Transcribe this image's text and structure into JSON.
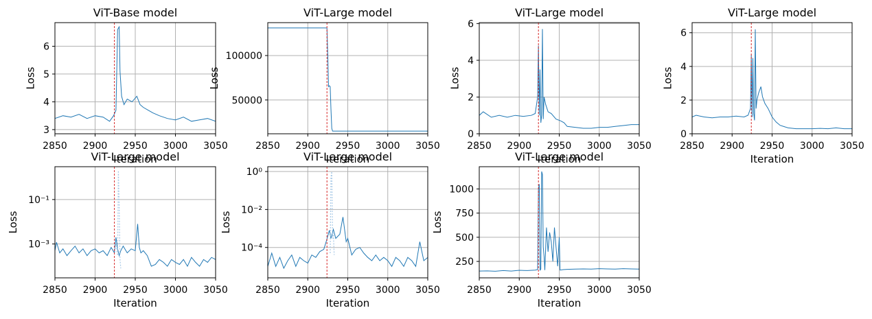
{
  "chart_data": [
    {
      "type": "line",
      "title": "ViT-Base model",
      "xlabel": "Iteration",
      "ylabel": "Loss",
      "xlim": [
        2850,
        3050
      ],
      "ylim": [
        2.85,
        6.85
      ],
      "yscale": "linear",
      "xticks": [
        2850,
        2900,
        2950,
        3000,
        3050
      ],
      "xtick_labels": [
        "2850",
        "2900",
        "2950",
        "3000",
        "3050"
      ],
      "yticks": [
        3,
        4,
        5,
        6
      ],
      "ytick_labels": [
        "3",
        "4",
        "5",
        "6"
      ],
      "grid": true,
      "line_color": "#1f77b4",
      "marker_color": "#d62728",
      "marker_x": 2924,
      "series": [
        {
          "x": [
            2850,
            2860,
            2870,
            2880,
            2890,
            2900,
            2910,
            2918,
            2923,
            2926,
            2928,
            2929,
            2930,
            2931,
            2933,
            2936,
            2940,
            2946,
            2952,
            2956,
            2960,
            2966,
            2972,
            2980,
            2990,
            3000,
            3010,
            3020,
            3030,
            3040,
            3050
          ],
          "y": [
            3.4,
            3.5,
            3.45,
            3.55,
            3.4,
            3.5,
            3.45,
            3.3,
            3.5,
            3.7,
            6.6,
            6.65,
            6.7,
            5.1,
            4.2,
            3.9,
            4.1,
            4.0,
            4.2,
            3.9,
            3.8,
            3.7,
            3.6,
            3.5,
            3.4,
            3.35,
            3.45,
            3.3,
            3.35,
            3.4,
            3.3
          ]
        }
      ]
    },
    {
      "type": "line",
      "title": "ViT-Large model",
      "xlabel": "Iteration",
      "ylabel": "Loss",
      "xlim": [
        2850,
        3050
      ],
      "ylim": [
        12000,
        137000
      ],
      "yscale": "linear",
      "xticks": [
        2850,
        2900,
        2950,
        3000,
        3050
      ],
      "xtick_labels": [
        "2850",
        "2900",
        "2950",
        "3000",
        "3050"
      ],
      "yticks": [
        50000,
        100000
      ],
      "ytick_labels": [
        "50000",
        "100000"
      ],
      "grid": true,
      "line_color": "#1f77b4",
      "marker_color": "#d62728",
      "marker_x": 2924,
      "series": [
        {
          "x": [
            2850,
            2900,
            2924,
            2925,
            2926,
            2927,
            2928,
            2929,
            2930,
            2931,
            2940,
            3000,
            3050
          ],
          "y": [
            131000,
            131000,
            131000,
            100000,
            65000,
            66000,
            65000,
            40000,
            18000,
            15000,
            15000,
            15000,
            15000
          ]
        }
      ]
    },
    {
      "type": "line",
      "title": "ViT-Large model",
      "xlabel": "Iteration",
      "ylabel": "Loss",
      "xlim": [
        2850,
        3050
      ],
      "ylim": [
        0,
        6.05
      ],
      "yscale": "linear",
      "xticks": [
        2850,
        2900,
        2950,
        3000,
        3050
      ],
      "xtick_labels": [
        "2850",
        "2900",
        "2950",
        "3000",
        "3050"
      ],
      "yticks": [
        0,
        2,
        4,
        6
      ],
      "ytick_labels": [
        "0",
        "2",
        "4",
        "6"
      ],
      "grid": true,
      "line_color": "#1f77b4",
      "marker_color": "#d62728",
      "marker_x": 2924,
      "series": [
        {
          "x": [
            2850,
            2855,
            2865,
            2875,
            2885,
            2895,
            2905,
            2915,
            2920,
            2923,
            2924,
            2925,
            2926,
            2927,
            2928,
            2929,
            2930,
            2931,
            2933,
            2936,
            2940,
            2946,
            2952,
            2956,
            2960,
            2970,
            2980,
            2990,
            3000,
            3010,
            3020,
            3030,
            3040,
            3050
          ],
          "y": [
            1.0,
            1.2,
            0.9,
            1.0,
            0.9,
            1.0,
            0.95,
            1.0,
            1.1,
            2.0,
            4.8,
            1.0,
            3.5,
            0.6,
            1.0,
            5.7,
            0.8,
            2.0,
            1.6,
            1.2,
            1.1,
            0.8,
            0.7,
            0.6,
            0.4,
            0.35,
            0.3,
            0.3,
            0.35,
            0.35,
            0.4,
            0.45,
            0.5,
            0.5
          ]
        }
      ]
    },
    {
      "type": "line",
      "title": "ViT-Large model",
      "xlabel": "Iteration",
      "ylabel": "Loss",
      "xlim": [
        2850,
        3050
      ],
      "ylim": [
        0,
        6.6
      ],
      "yscale": "linear",
      "xticks": [
        2850,
        2900,
        2950,
        3000,
        3050
      ],
      "xtick_labels": [
        "2850",
        "2900",
        "2950",
        "3000",
        "3050"
      ],
      "yticks": [
        0,
        2,
        4,
        6
      ],
      "ytick_labels": [
        "0",
        "2",
        "4",
        "6"
      ],
      "grid": true,
      "line_color": "#1f77b4",
      "marker_color": "#d62728",
      "marker_x": 2924,
      "series": [
        {
          "x": [
            2850,
            2855,
            2865,
            2875,
            2885,
            2895,
            2905,
            2915,
            2920,
            2923,
            2924,
            2925,
            2926,
            2927,
            2928,
            2929,
            2930,
            2931,
            2933,
            2936,
            2938,
            2941,
            2945,
            2950,
            2955,
            2960,
            2970,
            2980,
            2990,
            3000,
            3010,
            3020,
            3030,
            3040,
            3050
          ],
          "y": [
            1.0,
            1.1,
            1.0,
            0.95,
            1.0,
            1.0,
            1.05,
            1.0,
            1.1,
            1.5,
            4.7,
            1.0,
            4.5,
            1.2,
            0.8,
            6.2,
            1.5,
            2.0,
            2.4,
            2.8,
            2.2,
            1.8,
            1.5,
            1.0,
            0.7,
            0.5,
            0.35,
            0.3,
            0.3,
            0.3,
            0.32,
            0.3,
            0.35,
            0.3,
            0.3
          ]
        }
      ]
    },
    {
      "type": "line",
      "title": "ViT-Large model",
      "xlabel": "Iteration",
      "ylabel": "Loss",
      "xlim": [
        2850,
        3050
      ],
      "ylim": [
        3e-05,
        3
      ],
      "yscale": "log",
      "xticks": [
        2850,
        2900,
        2950,
        3000,
        3050
      ],
      "xtick_labels": [
        "2850",
        "2900",
        "2950",
        "3000",
        "3050"
      ],
      "yticks": [
        0.001,
        0.1
      ],
      "ytick_labels": [
        "10⁻³",
        "10⁻¹"
      ],
      "grid": true,
      "line_color": "#1f77b4",
      "secondary_line_color": "#a6c8e6",
      "marker_color": "#d62728",
      "marker_x": 2924,
      "series": [
        {
          "x": [
            2850,
            2852,
            2856,
            2860,
            2865,
            2870,
            2875,
            2880,
            2885,
            2890,
            2895,
            2900,
            2905,
            2910,
            2915,
            2920,
            2924,
            2926,
            2928,
            2930,
            2932,
            2935,
            2940,
            2945,
            2950,
            2953,
            2955,
            2957,
            2960,
            2965,
            2970,
            2975,
            2980,
            2985,
            2990,
            2995,
            3000,
            3005,
            3010,
            3015,
            3020,
            3025,
            3030,
            3035,
            3040,
            3045,
            3050
          ],
          "y": [
            0.0005,
            0.0012,
            0.0004,
            0.0006,
            0.0003,
            0.0005,
            0.0008,
            0.0004,
            0.0006,
            0.0003,
            0.0005,
            0.0006,
            0.0004,
            0.0005,
            0.0003,
            0.0007,
            0.0004,
            0.002,
            0.0006,
            0.0003,
            0.0005,
            0.0008,
            0.0004,
            0.0006,
            0.0005,
            0.008,
            0.0007,
            0.0004,
            0.0005,
            0.0003,
            0.0001,
            0.00012,
            0.0002,
            0.00015,
            0.0001,
            0.0002,
            0.00015,
            0.00012,
            0.0002,
            0.0001,
            0.00025,
            0.00015,
            0.0001,
            0.0002,
            0.00015,
            0.00025,
            0.0002
          ]
        },
        {
          "x": [
            2924,
            2926,
            2928,
            2929,
            2930,
            2931,
            2932
          ],
          "y": [
            0.0005,
            0.001,
            0.0003,
            2.0,
            0.05,
            0.0002,
            8e-05
          ]
        }
      ]
    },
    {
      "type": "line",
      "title": "ViT-Large model",
      "xlabel": "Iteration",
      "ylabel": "Loss",
      "xlim": [
        2850,
        3050
      ],
      "ylim": [
        2.5e-06,
        1.8
      ],
      "yscale": "log",
      "xticks": [
        2850,
        2900,
        2950,
        3000,
        3050
      ],
      "xtick_labels": [
        "2850",
        "2900",
        "2950",
        "3000",
        "3050"
      ],
      "yticks": [
        0.0001,
        0.01,
        1
      ],
      "ytick_labels": [
        "10⁻⁴",
        "10⁻²",
        "10⁰"
      ],
      "grid": true,
      "line_color": "#1f77b4",
      "secondary_line_color": "#a6c8e6",
      "marker_color": "#d62728",
      "marker_x": 2924,
      "series": [
        {
          "x": [
            2850,
            2855,
            2860,
            2865,
            2870,
            2875,
            2880,
            2885,
            2890,
            2895,
            2900,
            2905,
            2910,
            2915,
            2920,
            2923,
            2925,
            2927,
            2929,
            2932,
            2935,
            2940,
            2944,
            2948,
            2950,
            2955,
            2960,
            2965,
            2970,
            2975,
            2980,
            2985,
            2990,
            2995,
            3000,
            3005,
            3010,
            3015,
            3020,
            3025,
            3030,
            3035,
            3040,
            3045,
            3050
          ],
          "y": [
            1e-05,
            5e-05,
            1e-05,
            3e-05,
            8e-06,
            2e-05,
            4e-05,
            1e-05,
            3e-05,
            2e-05,
            1.5e-05,
            4e-05,
            3e-05,
            6e-05,
            8e-05,
            0.0002,
            0.0004,
            0.0008,
            0.0003,
            0.0009,
            0.0003,
            0.0005,
            0.004,
            0.0002,
            0.0003,
            4e-05,
            8e-05,
            0.0001,
            5e-05,
            3e-05,
            2e-05,
            4e-05,
            2e-05,
            3e-05,
            2e-05,
            1e-05,
            3e-05,
            2e-05,
            1e-05,
            3e-05,
            2e-05,
            1e-05,
            0.0002,
            2e-05,
            3e-05
          ]
        },
        {
          "x": [
            2928,
            2929,
            2930,
            2931,
            2932,
            2933
          ],
          "y": [
            5e-05,
            0.5,
            1.0,
            0.0003,
            0.0006,
            4e-05
          ]
        }
      ]
    },
    {
      "type": "line",
      "title": "ViT-Large model",
      "xlabel": "Iteration",
      "ylabel": "Loss",
      "xlim": [
        2850,
        3050
      ],
      "ylim": [
        80,
        1230
      ],
      "yscale": "linear",
      "xticks": [
        2850,
        2900,
        2950,
        3000,
        3050
      ],
      "xtick_labels": [
        "2850",
        "2900",
        "2950",
        "3000",
        "3050"
      ],
      "yticks": [
        250,
        500,
        750,
        1000
      ],
      "ytick_labels": [
        "250",
        "500",
        "750",
        "1000"
      ],
      "grid": true,
      "line_color": "#1f77b4",
      "marker_color": "#d62728",
      "marker_x": 2924,
      "series": [
        {
          "x": [
            2850,
            2860,
            2870,
            2880,
            2890,
            2900,
            2910,
            2920,
            2923,
            2924,
            2925,
            2926,
            2927,
            2928,
            2929,
            2930,
            2931,
            2932,
            2934,
            2936,
            2938,
            2940,
            2942,
            2944,
            2946,
            2948,
            2950,
            2951,
            2955,
            2960,
            2970,
            2980,
            2990,
            3000,
            3010,
            3020,
            3030,
            3040,
            3050
          ],
          "y": [
            150,
            152,
            148,
            155,
            150,
            158,
            155,
            160,
            165,
            1000,
            1050,
            160,
            170,
            1180,
            1150,
            400,
            300,
            160,
            600,
            350,
            550,
            450,
            250,
            600,
            400,
            200,
            500,
            160,
            165,
            168,
            170,
            172,
            170,
            175,
            172,
            170,
            175,
            172,
            170
          ]
        }
      ]
    }
  ]
}
